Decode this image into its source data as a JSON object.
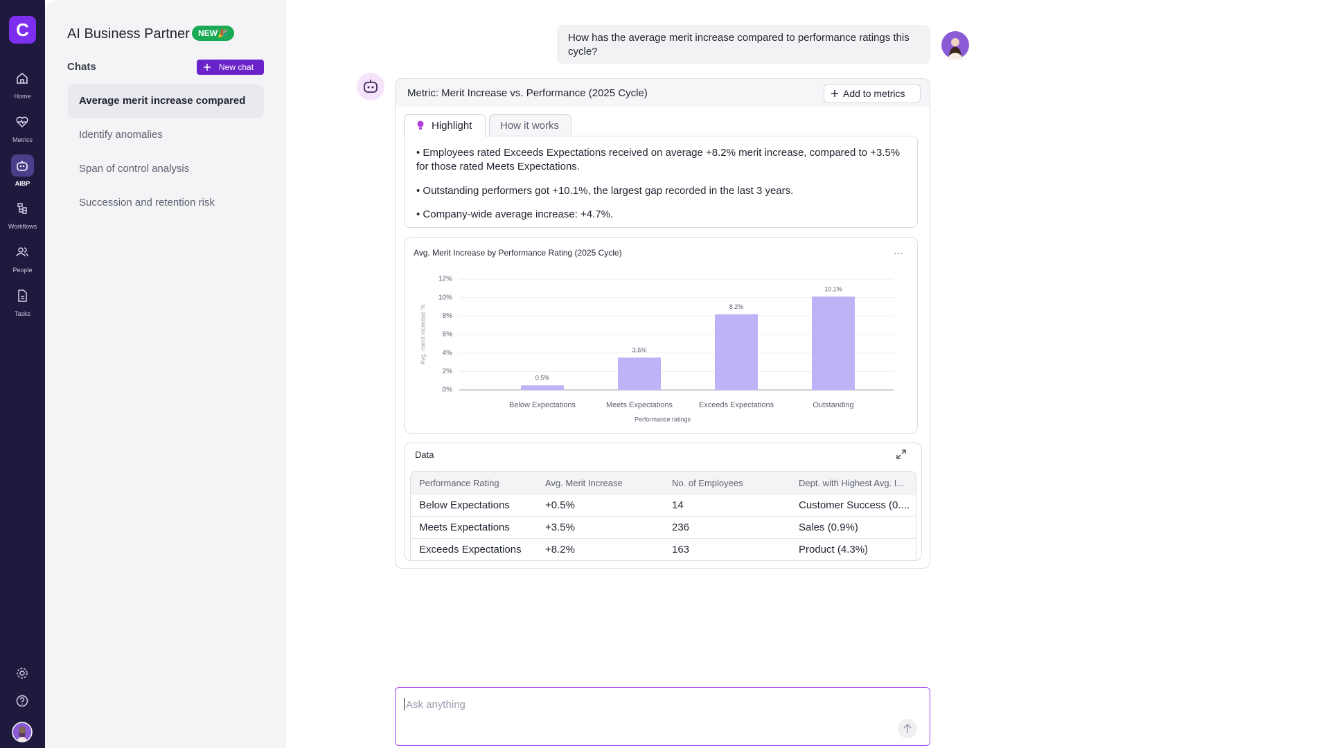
{
  "nav": {
    "logo": "C",
    "items": [
      "Home",
      "Metrics",
      "AIBP",
      "Workflows",
      "People",
      "Tasks"
    ]
  },
  "sidebar": {
    "title": "AI Business Partner",
    "badge": "NEW🎉",
    "chats_label": "Chats",
    "new_chat": "New chat",
    "chats": [
      "Average merit increase compared",
      "Identify anomalies",
      "Span of control analysis",
      "Succession and retention risk"
    ]
  },
  "conversation": {
    "question": "How has the average merit increase compared to performance ratings this cycle?",
    "card_title": "Metric: Merit Increase vs. Performance (2025 Cycle)",
    "add_button": "Add to metrics",
    "tabs": [
      "Highlight",
      "How it works"
    ],
    "highlights": [
      "• Employees rated Exceeds Expectations received on average +8.2% merit increase, compared to +3.5% for those rated Meets Expectations.",
      "• Outstanding performers got +10.1%, the largest gap recorded in the last 3 years.",
      "• Company-wide average increase: +4.7%."
    ]
  },
  "chart_data": {
    "type": "bar",
    "title": "Avg. Merit Increase by Performance Rating (2025 Cycle)",
    "categories": [
      "Below Expectations",
      "Meets Expectations",
      "Exceeds Expectations",
      "Outstanding"
    ],
    "values": [
      0.5,
      3.5,
      8.2,
      10.1
    ],
    "value_labels": [
      "0.5%",
      "3.5%",
      "8.2%",
      "10.1%"
    ],
    "color": "#bcb4f6",
    "x_label": "Performance ratings",
    "y_label": "Avg. merit increase %",
    "ylim": [
      0,
      12
    ],
    "yticks": [
      {
        "value": 0,
        "label": "0%"
      },
      {
        "value": 2,
        "label": "2%"
      },
      {
        "value": 4,
        "label": "4%"
      },
      {
        "value": 6,
        "label": "6%"
      },
      {
        "value": 8,
        "label": "8%"
      },
      {
        "value": 10,
        "label": "10%"
      },
      {
        "value": 12,
        "label": "12%"
      }
    ],
    "grid": true
  },
  "data_table": {
    "title": "Data",
    "columns": [
      "Performance Rating",
      "Avg. Merit Increase",
      "No. of Employees",
      "Dept. with Highest Avg. I..."
    ],
    "rows": [
      [
        "Below Expectations",
        "+0.5%",
        "14",
        "Customer Success (0...."
      ],
      [
        "Meets Expectations",
        "+3.5%",
        "236",
        "Sales (0.9%)"
      ],
      [
        "Exceeds Expectations",
        "+8.2%",
        "163",
        "Product (4.3%)"
      ]
    ]
  },
  "input": {
    "placeholder": "Ask anything"
  }
}
